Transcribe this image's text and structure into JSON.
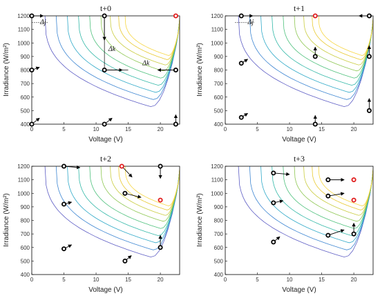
{
  "chart_data": [
    {
      "type": "scatter",
      "title": "t+0",
      "xlabel": "Voltage (V)",
      "ylabel": "Irradiance (W/m²)",
      "xlim": [
        0,
        23
      ],
      "ylim": [
        400,
        1200
      ],
      "xticks": [
        0,
        5,
        10,
        15,
        20
      ],
      "yticks": [
        400,
        500,
        600,
        700,
        800,
        900,
        1000,
        1100,
        1200
      ],
      "particles": [
        {
          "x": 0,
          "y": 1200,
          "dx": 1.8,
          "dy": 0,
          "best": false
        },
        {
          "x": 11.3,
          "y": 1200,
          "dx": 0,
          "dy": -180,
          "best": false
        },
        {
          "x": 22.4,
          "y": 1200,
          "dx": 0,
          "dy": 0,
          "best": true
        },
        {
          "x": 0,
          "y": 800,
          "dx": 1.2,
          "dy": 20,
          "best": false
        },
        {
          "x": 11.3,
          "y": 800,
          "dx": 2.8,
          "dy": 0,
          "best": false
        },
        {
          "x": 22.4,
          "y": 800,
          "dx": -2.8,
          "dy": 0,
          "best": false
        },
        {
          "x": 0,
          "y": 400,
          "dx": 1.2,
          "dy": 45,
          "best": false
        },
        {
          "x": 11.3,
          "y": 400,
          "dx": 1.2,
          "dy": 45,
          "best": false
        },
        {
          "x": 22.4,
          "y": 400,
          "dx": 0,
          "dy": 70,
          "best": false
        }
      ],
      "annotations": [
        {
          "text": "Δj",
          "x": 1.3,
          "y": 1140
        },
        {
          "text": "Δk",
          "x": 11.9,
          "y": 940
        },
        {
          "text": "Δk",
          "x": 17.2,
          "y": 835
        }
      ]
    },
    {
      "type": "scatter",
      "title": "t+1",
      "xlabel": "Voltage (V)",
      "ylabel": "Irradiance (W/m²)",
      "xlim": [
        0,
        23
      ],
      "ylim": [
        400,
        1200
      ],
      "xticks": [
        0,
        5,
        10,
        15,
        20
      ],
      "yticks": [
        400,
        500,
        600,
        700,
        800,
        900,
        1000,
        1100,
        1200
      ],
      "particles": [
        {
          "x": 2.5,
          "y": 1200,
          "dx": 1.8,
          "dy": 0,
          "best": false
        },
        {
          "x": 14,
          "y": 1200,
          "dx": 0,
          "dy": 0,
          "best": true
        },
        {
          "x": 22.4,
          "y": 1200,
          "dx": -1.6,
          "dy": 0,
          "best": false
        },
        {
          "x": 2.5,
          "y": 850,
          "dx": 1,
          "dy": 30,
          "best": false
        },
        {
          "x": 14,
          "y": 900,
          "dx": 0,
          "dy": 70,
          "best": false
        },
        {
          "x": 22.4,
          "y": 900,
          "dx": 0,
          "dy": 80,
          "best": false
        },
        {
          "x": 2.5,
          "y": 450,
          "dx": 1,
          "dy": 30,
          "best": false
        },
        {
          "x": 14,
          "y": 400,
          "dx": 0,
          "dy": 65,
          "best": false
        },
        {
          "x": 22.4,
          "y": 500,
          "dx": 0,
          "dy": 90,
          "best": false
        }
      ],
      "annotations": [
        {
          "text": "Δj",
          "x": 3.5,
          "y": 1140
        }
      ]
    },
    {
      "type": "scatter",
      "title": "t+2",
      "xlabel": "Voltage (V)",
      "ylabel": "Irradiance (W/m²)",
      "xlim": [
        0,
        23
      ],
      "ylim": [
        400,
        1200
      ],
      "xticks": [
        0,
        5,
        10,
        15,
        20
      ],
      "yticks": [
        400,
        500,
        600,
        700,
        800,
        900,
        1000,
        1100,
        1200
      ],
      "particles": [
        {
          "x": 5,
          "y": 1200,
          "dx": 2.5,
          "dy": -10,
          "best": false
        },
        {
          "x": 14,
          "y": 1200,
          "dx": 1.6,
          "dy": -80,
          "best": true
        },
        {
          "x": 20,
          "y": 1200,
          "dx": 0,
          "dy": -90,
          "best": false
        },
        {
          "x": 5,
          "y": 920,
          "dx": 1.2,
          "dy": 15,
          "best": false
        },
        {
          "x": 14.5,
          "y": 1000,
          "dx": 2.5,
          "dy": -30,
          "best": false
        },
        {
          "x": 20,
          "y": 950,
          "dx": 0,
          "dy": 0,
          "best": true
        },
        {
          "x": 5,
          "y": 590,
          "dx": 1.2,
          "dy": 30,
          "best": false
        },
        {
          "x": 14.5,
          "y": 500,
          "dx": 1,
          "dy": 40,
          "best": false
        },
        {
          "x": 20,
          "y": 600,
          "dx": 0,
          "dy": 90,
          "best": false
        }
      ],
      "annotations": []
    },
    {
      "type": "scatter",
      "title": "t+3",
      "xlabel": "Voltage (V)",
      "ylabel": "Irradiance (W/m²)",
      "xlim": [
        0,
        23
      ],
      "ylim": [
        400,
        1200
      ],
      "xticks": [
        0,
        5,
        10,
        15,
        20
      ],
      "yticks": [
        400,
        500,
        600,
        700,
        800,
        900,
        1000,
        1100,
        1200
      ],
      "particles": [
        {
          "x": 7.5,
          "y": 1150,
          "dx": 2.5,
          "dy": -10,
          "best": false
        },
        {
          "x": 16,
          "y": 1100,
          "dx": 2.5,
          "dy": 0,
          "best": false
        },
        {
          "x": 20,
          "y": 1100,
          "dx": 0,
          "dy": 0,
          "best": true
        },
        {
          "x": 7.5,
          "y": 930,
          "dx": 1.5,
          "dy": 15,
          "best": false
        },
        {
          "x": 16,
          "y": 980,
          "dx": 2.5,
          "dy": 20,
          "best": false
        },
        {
          "x": 20,
          "y": 950,
          "dx": 0,
          "dy": 0,
          "best": true
        },
        {
          "x": 7.5,
          "y": 640,
          "dx": 1,
          "dy": 40,
          "best": false
        },
        {
          "x": 16,
          "y": 690,
          "dx": 2.5,
          "dy": 40,
          "best": false
        },
        {
          "x": 20,
          "y": 700,
          "dx": 0,
          "dy": 80,
          "best": false
        }
      ],
      "annotations": []
    }
  ],
  "contours": {
    "type": "contour-background",
    "colors": [
      "#5c5cc4",
      "#3d86d2",
      "#2fa9c8",
      "#33b8a8",
      "#4cc07b",
      "#8cc650",
      "#c9cc3e",
      "#e8c82c",
      "#f7d640"
    ],
    "marker_color": "#000000",
    "best_marker_color": "#e01b1b"
  }
}
